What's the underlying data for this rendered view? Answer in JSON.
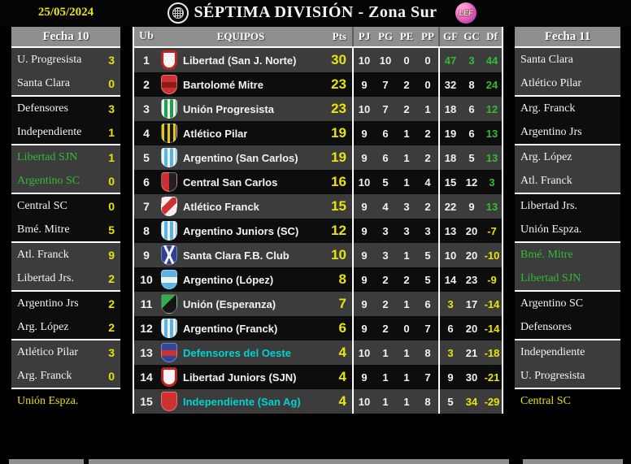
{
  "header": {
    "date": "25/05/2024",
    "title": "SÉPTIMA DIVISIÓN - Zona Sur",
    "league_logo": "LEF"
  },
  "colors": {
    "yellow": "#e8e40a",
    "green": "#33bb33",
    "cyan": "#00d2d2",
    "white": "#f2f2f2",
    "row_gray": "#3c3c3c",
    "row_dark": "#0d0d0d",
    "header_gray": "#8e8e8e"
  },
  "fecha10": {
    "title": "Fecha 10",
    "matches": [
      {
        "home": "U. Progresista",
        "home_score": "3",
        "away": "Santa Clara",
        "away_score": "0",
        "home_color": "white",
        "away_color": "white"
      },
      {
        "home": "Defensores",
        "home_score": "3",
        "away": "Independiente",
        "away_score": "1",
        "home_color": "white",
        "away_color": "white"
      },
      {
        "home": "Libertad SJN",
        "home_score": "1",
        "away": "Argentino SC",
        "away_score": "0",
        "home_color": "green",
        "away_color": "green"
      },
      {
        "home": "Central SC",
        "home_score": "0",
        "away": "Bmé. Mitre",
        "away_score": "5",
        "home_color": "white",
        "away_color": "white"
      },
      {
        "home": "Atl. Franck",
        "home_score": "9",
        "away": "Libertad Jrs.",
        "away_score": "2",
        "home_color": "white",
        "away_color": "white"
      },
      {
        "home": "Argentino Jrs",
        "home_score": "2",
        "away": "Arg. López",
        "away_score": "2",
        "home_color": "white",
        "away_color": "white"
      },
      {
        "home": "Atlético Pilar",
        "home_score": "3",
        "away": "Arg. Franck",
        "away_score": "0",
        "home_color": "white",
        "away_color": "white"
      }
    ],
    "bye": "Unión Espza."
  },
  "fecha11": {
    "title": "Fecha 11",
    "matches": [
      {
        "home": "Santa Clara",
        "home_score": "",
        "away": "Atlético Pilar",
        "away_score": "",
        "home_color": "white",
        "away_color": "white"
      },
      {
        "home": "Arg. Franck",
        "home_score": "",
        "away": "Argentino Jrs",
        "away_score": "",
        "home_color": "white",
        "away_color": "white"
      },
      {
        "home": "Arg. López",
        "home_score": "",
        "away": "Atl. Franck",
        "away_score": "",
        "home_color": "white",
        "away_color": "white"
      },
      {
        "home": "Libertad Jrs.",
        "home_score": "",
        "away": "Unión Espza.",
        "away_score": "",
        "home_color": "white",
        "away_color": "white"
      },
      {
        "home": "Bmé. Mitre",
        "home_score": "",
        "away": "Libertad SJN",
        "away_score": "",
        "home_color": "green",
        "away_color": "green"
      },
      {
        "home": "Argentino SC",
        "home_score": "",
        "away": "Defensores",
        "away_score": "",
        "home_color": "white",
        "away_color": "white"
      },
      {
        "home": "Independiente",
        "home_score": "",
        "away": "U. Progresista",
        "away_score": "",
        "home_color": "white",
        "away_color": "white"
      }
    ],
    "bye": "Central SC"
  },
  "standings": {
    "columns": {
      "ub": "Ub",
      "equipos": "EQUIPOS",
      "pts": "Pts",
      "pj": "PJ",
      "pg": "PG",
      "pe": "PE",
      "pp": "PP",
      "gf": "GF",
      "gc": "GC",
      "df": "Df"
    },
    "rows": [
      {
        "pos": "1",
        "team": "Libertad (San J. Norte)",
        "team_color": "white",
        "badge": {
          "style": "border",
          "c1": "#f5f5f5",
          "c2": "#c02525"
        },
        "pts": "30",
        "pj": "10",
        "pg": "10",
        "pe": "0",
        "pp": "0",
        "gf": "47",
        "gc": "3",
        "df": "44",
        "gf_color": "green",
        "gc_color": "green",
        "df_color": "green"
      },
      {
        "pos": "2",
        "team": "Bartolomé Mitre",
        "team_color": "white",
        "badge": {
          "style": "band",
          "c1": "#d03030",
          "c2": "#8c1c1c"
        },
        "pts": "23",
        "pj": "9",
        "pg": "7",
        "pe": "2",
        "pp": "0",
        "gf": "32",
        "gc": "8",
        "df": "24",
        "gf_color": "white",
        "gc_color": "white",
        "df_color": "green"
      },
      {
        "pos": "3",
        "team": "Unión Progresista",
        "team_color": "white",
        "badge": {
          "style": "stripes",
          "c1": "#1fa050",
          "c2": "#f0f0f0"
        },
        "pts": "23",
        "pj": "10",
        "pg": "7",
        "pe": "2",
        "pp": "1",
        "gf": "18",
        "gc": "6",
        "df": "12",
        "gf_color": "white",
        "gc_color": "white",
        "df_color": "green"
      },
      {
        "pos": "4",
        "team": "Atlético Pilar",
        "team_color": "white",
        "badge": {
          "style": "stripes",
          "c1": "#151515",
          "c2": "#e6c414"
        },
        "pts": "19",
        "pj": "9",
        "pg": "6",
        "pe": "1",
        "pp": "2",
        "gf": "19",
        "gc": "6",
        "df": "13",
        "gf_color": "white",
        "gc_color": "white",
        "df_color": "green"
      },
      {
        "pos": "5",
        "team": "Argentino (San Carlos)",
        "team_color": "white",
        "badge": {
          "style": "stripes",
          "c1": "#5ab4e0",
          "c2": "#f0f0f0"
        },
        "pts": "19",
        "pj": "9",
        "pg": "6",
        "pe": "1",
        "pp": "2",
        "gf": "18",
        "gc": "5",
        "df": "13",
        "gf_color": "white",
        "gc_color": "white",
        "df_color": "green"
      },
      {
        "pos": "6",
        "team": "Central San Carlos",
        "team_color": "white",
        "badge": {
          "style": "half",
          "c1": "#cf2f2f",
          "c2": "#202020"
        },
        "pts": "16",
        "pj": "10",
        "pg": "5",
        "pe": "1",
        "pp": "4",
        "gf": "15",
        "gc": "12",
        "df": "3",
        "gf_color": "white",
        "gc_color": "white",
        "df_color": "green"
      },
      {
        "pos": "7",
        "team": "Atlético Franck",
        "team_color": "white",
        "badge": {
          "style": "sash",
          "c1": "#f0f0f0",
          "c2": "#d03030"
        },
        "pts": "15",
        "pj": "9",
        "pg": "4",
        "pe": "3",
        "pp": "2",
        "gf": "22",
        "gc": "9",
        "df": "13",
        "gf_color": "white",
        "gc_color": "white",
        "df_color": "green"
      },
      {
        "pos": "8",
        "team": "Argentino Juniors (SC)",
        "team_color": "white",
        "badge": {
          "style": "stripes",
          "c1": "#5ab4e0",
          "c2": "#f0f0f0"
        },
        "pts": "12",
        "pj": "9",
        "pg": "3",
        "pe": "3",
        "pp": "3",
        "gf": "13",
        "gc": "20",
        "df": "-7",
        "gf_color": "white",
        "gc_color": "white",
        "df_color": "yellow"
      },
      {
        "pos": "9",
        "team": "Santa Clara F.B. Club",
        "team_color": "white",
        "badge": {
          "style": "vee",
          "c1": "#2a3f96",
          "c2": "#f0f0f0"
        },
        "pts": "10",
        "pj": "9",
        "pg": "3",
        "pe": "1",
        "pp": "5",
        "gf": "10",
        "gc": "20",
        "df": "-10",
        "gf_color": "white",
        "gc_color": "white",
        "df_color": "yellow"
      },
      {
        "pos": "10",
        "team": "Argentino (López)",
        "team_color": "white",
        "badge": {
          "style": "band",
          "c1": "#5ab4e0",
          "c2": "#f0f0f0"
        },
        "pts": "8",
        "pj": "9",
        "pg": "2",
        "pe": "2",
        "pp": "5",
        "gf": "14",
        "gc": "23",
        "df": "-9",
        "gf_color": "white",
        "gc_color": "white",
        "df_color": "yellow"
      },
      {
        "pos": "11",
        "team": "Unión (Esperanza)",
        "team_color": "white",
        "badge": {
          "style": "halfdiag",
          "c1": "#151515",
          "c2": "#2fae4a"
        },
        "pts": "7",
        "pj": "9",
        "pg": "2",
        "pe": "1",
        "pp": "6",
        "gf": "3",
        "gc": "17",
        "df": "-14",
        "gf_color": "yellow",
        "gc_color": "white",
        "df_color": "yellow"
      },
      {
        "pos": "12",
        "team": "Argentino (Franck)",
        "team_color": "white",
        "badge": {
          "style": "stripes",
          "c1": "#5ab4e0",
          "c2": "#f0f0f0"
        },
        "pts": "6",
        "pj": "9",
        "pg": "2",
        "pe": "0",
        "pp": "7",
        "gf": "6",
        "gc": "20",
        "df": "-14",
        "gf_color": "white",
        "gc_color": "white",
        "df_color": "yellow"
      },
      {
        "pos": "13",
        "team": "Defensores del Oeste",
        "team_color": "cyan",
        "badge": {
          "style": "band",
          "c1": "#31479e",
          "c2": "#d03030"
        },
        "pts": "4",
        "pj": "10",
        "pg": "1",
        "pe": "1",
        "pp": "8",
        "gf": "3",
        "gc": "21",
        "df": "-18",
        "gf_color": "yellow",
        "gc_color": "white",
        "df_color": "yellow"
      },
      {
        "pos": "14",
        "team": "Libertad Juniors (SJN)",
        "team_color": "white",
        "badge": {
          "style": "border",
          "c1": "#f5f5f5",
          "c2": "#c02525"
        },
        "pts": "4",
        "pj": "9",
        "pg": "1",
        "pe": "1",
        "pp": "7",
        "gf": "9",
        "gc": "30",
        "df": "-21",
        "gf_color": "white",
        "gc_color": "white",
        "df_color": "yellow"
      },
      {
        "pos": "15",
        "team": "Independiente (San Ag)",
        "team_color": "cyan",
        "badge": {
          "style": "plain",
          "c1": "#d03030",
          "c2": "#f0f0f0"
        },
        "pts": "4",
        "pj": "10",
        "pg": "1",
        "pe": "1",
        "pp": "8",
        "gf": "5",
        "gc": "34",
        "df": "-29",
        "gf_color": "white",
        "gc_color": "yellow",
        "df_color": "yellow"
      }
    ]
  }
}
